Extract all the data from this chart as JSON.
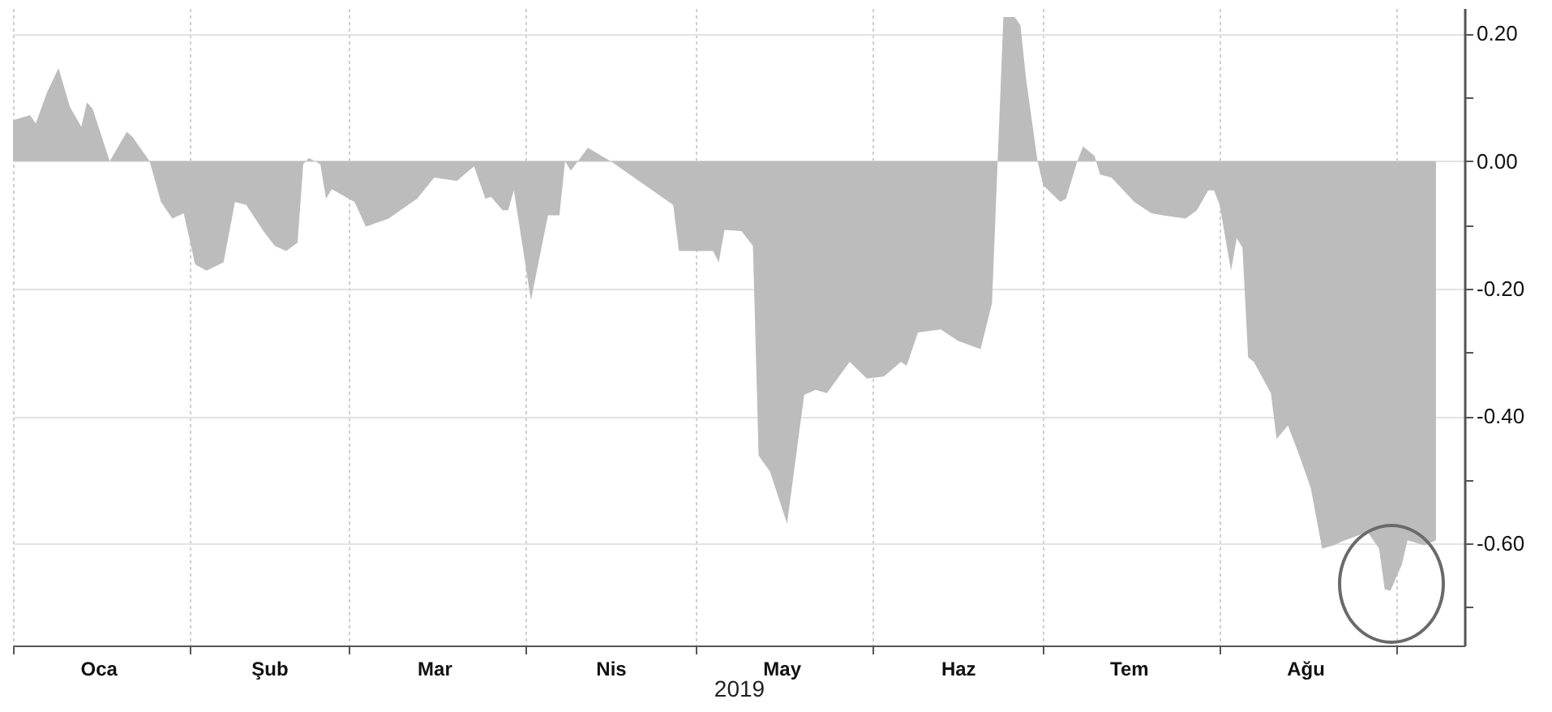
{
  "chart_data": {
    "type": "area",
    "xlabel": "2019",
    "x": [
      "2019-01-01",
      "2019-01-04",
      "2019-01-05",
      "2019-01-07",
      "2019-01-09",
      "2019-01-11",
      "2019-01-13",
      "2019-01-14",
      "2019-01-15",
      "2019-01-18",
      "2019-01-21",
      "2019-01-22",
      "2019-01-25",
      "2019-01-27",
      "2019-01-29",
      "2019-01-31",
      "2019-02-02",
      "2019-02-04",
      "2019-02-07",
      "2019-02-09",
      "2019-02-11",
      "2019-02-14",
      "2019-02-16",
      "2019-02-18",
      "2019-02-20",
      "2019-02-21",
      "2019-02-22",
      "2019-02-24",
      "2019-02-25",
      "2019-02-26",
      "2019-03-02",
      "2019-03-04",
      "2019-03-08",
      "2019-03-13",
      "2019-03-16",
      "2019-03-20",
      "2019-03-23",
      "2019-03-25",
      "2019-03-26",
      "2019-03-28",
      "2019-03-29",
      "2019-03-30",
      "2019-04-02",
      "2019-04-05",
      "2019-04-07",
      "2019-04-08",
      "2019-04-09",
      "2019-04-12",
      "2019-04-15",
      "2019-04-16",
      "2019-04-27",
      "2019-04-28",
      "2019-05-04",
      "2019-05-05",
      "2019-05-06",
      "2019-05-09",
      "2019-05-11",
      "2019-05-12",
      "2019-05-14",
      "2019-05-17",
      "2019-05-20",
      "2019-05-22",
      "2019-05-24",
      "2019-05-28",
      "2019-05-31",
      "2019-06-03",
      "2019-06-06",
      "2019-06-07",
      "2019-06-09",
      "2019-06-13",
      "2019-06-16",
      "2019-06-20",
      "2019-06-22",
      "2019-06-24",
      "2019-06-26",
      "2019-06-27",
      "2019-06-28",
      "2019-06-30",
      "2019-07-01",
      "2019-07-04",
      "2019-07-05",
      "2019-07-07",
      "2019-07-08",
      "2019-07-10",
      "2019-07-11",
      "2019-07-13",
      "2019-07-17",
      "2019-07-20",
      "2019-07-22",
      "2019-07-26",
      "2019-07-28",
      "2019-07-30",
      "2019-07-31",
      "2019-08-01",
      "2019-08-03",
      "2019-08-04",
      "2019-08-05",
      "2019-08-06",
      "2019-08-07",
      "2019-08-10",
      "2019-08-11",
      "2019-08-13",
      "2019-08-15",
      "2019-08-17",
      "2019-08-19",
      "2019-08-21",
      "2019-08-23",
      "2019-08-27",
      "2019-08-29",
      "2019-08-30",
      "2019-08-31",
      "2019-09-02",
      "2019-09-03",
      "2019-09-06",
      "2019-09-08"
    ],
    "series": [
      {
        "color": "#bcbcbc",
        "values": [
          0.064,
          0.072,
          0.059,
          0.108,
          0.146,
          0.085,
          0.054,
          0.092,
          0.082,
          0.0,
          0.046,
          0.038,
          0.0,
          -0.064,
          -0.09,
          -0.082,
          -0.162,
          -0.172,
          -0.159,
          -0.064,
          -0.069,
          -0.11,
          -0.133,
          -0.141,
          -0.128,
          -0.005,
          0.005,
          -0.005,
          -0.059,
          -0.044,
          -0.064,
          -0.103,
          -0.09,
          -0.059,
          -0.026,
          -0.031,
          -0.008,
          -0.059,
          -0.056,
          -0.077,
          -0.077,
          -0.046,
          -0.218,
          -0.085,
          -0.085,
          0.0,
          -0.015,
          0.021,
          0.005,
          0.0,
          -0.069,
          -0.141,
          -0.141,
          -0.159,
          -0.108,
          -0.11,
          -0.133,
          -0.462,
          -0.487,
          -0.569,
          -0.367,
          -0.359,
          -0.364,
          -0.315,
          -0.341,
          -0.338,
          -0.315,
          -0.321,
          -0.269,
          -0.264,
          -0.282,
          -0.295,
          -0.223,
          0.226,
          0.226,
          0.213,
          0.128,
          0.0,
          -0.038,
          -0.064,
          -0.059,
          0.0,
          0.023,
          0.008,
          -0.021,
          -0.026,
          -0.064,
          -0.082,
          -0.085,
          -0.09,
          -0.077,
          -0.046,
          -0.046,
          -0.069,
          -0.172,
          -0.121,
          -0.136,
          -0.308,
          -0.315,
          -0.364,
          -0.436,
          -0.415,
          -0.462,
          -0.513,
          -0.608,
          -0.603,
          -0.595,
          -0.582,
          -0.608,
          -0.672,
          -0.674,
          -0.633,
          -0.595,
          -0.603,
          -0.595
        ]
      }
    ],
    "xlim": [
      "2019-01-01",
      "2019-09-13"
    ],
    "xticks": [
      {
        "value": "2019-01-01",
        "label": null
      },
      {
        "value": "2019-01-16",
        "label": "Oca"
      },
      {
        "value": "2019-02-01",
        "label": null
      },
      {
        "value": "2019-02-15",
        "label": "Şub"
      },
      {
        "value": "2019-03-01",
        "label": null
      },
      {
        "value": "2019-03-16",
        "label": "Mar"
      },
      {
        "value": "2019-04-01",
        "label": null
      },
      {
        "value": "2019-04-16",
        "label": "Nis"
      },
      {
        "value": "2019-05-01",
        "label": null
      },
      {
        "value": "2019-05-16",
        "label": "May"
      },
      {
        "value": "2019-06-01",
        "label": null
      },
      {
        "value": "2019-06-16",
        "label": "Haz"
      },
      {
        "value": "2019-07-01",
        "label": null
      },
      {
        "value": "2019-07-16",
        "label": "Tem"
      },
      {
        "value": "2019-08-01",
        "label": null
      },
      {
        "value": "2019-08-16",
        "label": "Ağu"
      },
      {
        "value": "2019-09-01",
        "label": null
      }
    ],
    "ylim": [
      -0.76,
      0.24
    ],
    "yticks": [
      {
        "value": 0.2,
        "label": "0.20"
      },
      {
        "value": 0.1,
        "label": null
      },
      {
        "value": 0,
        "label": "0.00"
      },
      {
        "value": -0.1,
        "label": null
      },
      {
        "value": -0.2,
        "label": "-0.20"
      },
      {
        "value": -0.3,
        "label": null
      },
      {
        "value": -0.4,
        "label": "-0.40"
      },
      {
        "value": -0.5,
        "label": null
      },
      {
        "value": -0.6,
        "label": "-0.60"
      },
      {
        "value": -0.7,
        "label": null
      }
    ],
    "grid": true
  }
}
